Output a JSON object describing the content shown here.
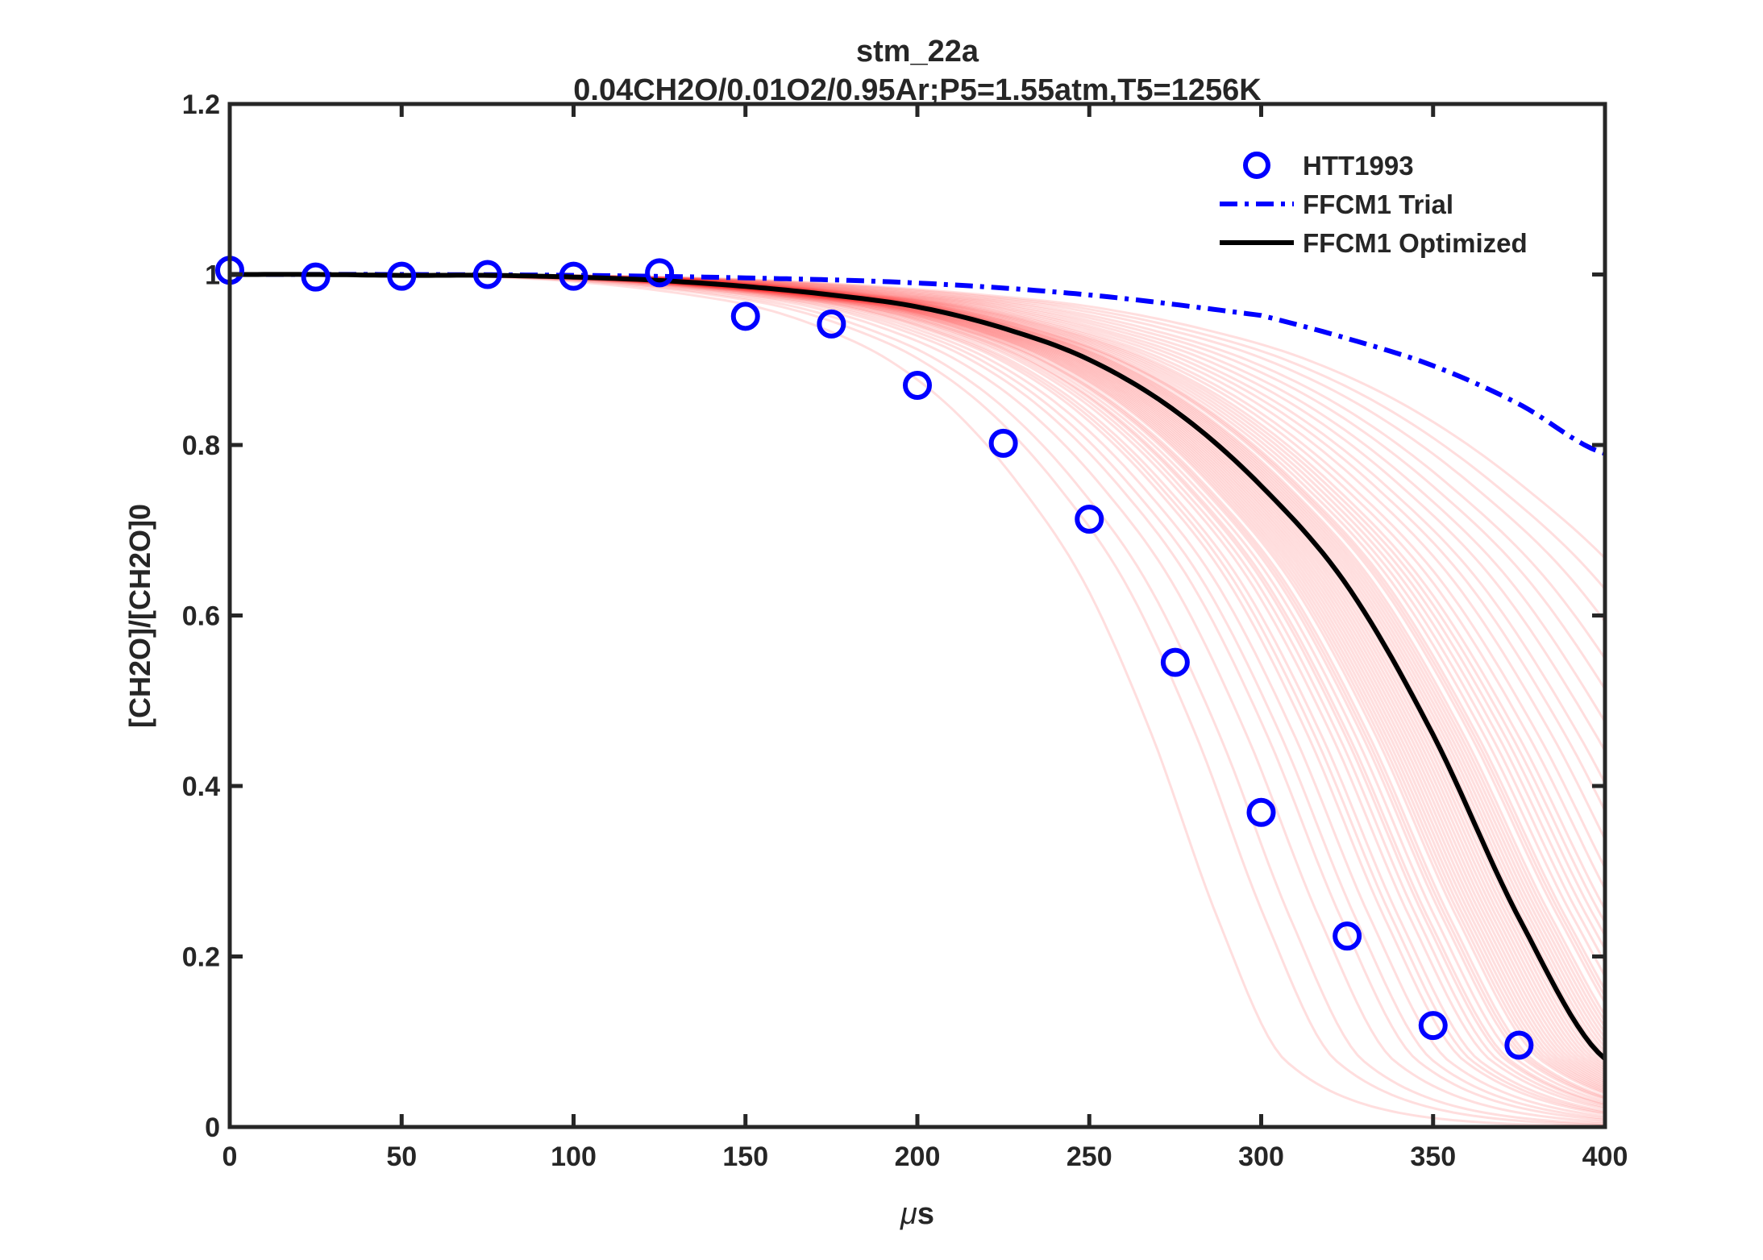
{
  "chart_data": {
    "type": "line",
    "title": "stm_22a",
    "subtitle": "0.04CH2O/0.01O2/0.95Ar;P5=1.55atm,T5=1256K",
    "xlabel_prefix": "μ",
    "xlabel_suffix": "s",
    "ylabel": "[CH2O]/[CH2O]0",
    "xlim": [
      0,
      400
    ],
    "ylim": [
      0,
      1.2
    ],
    "xticks": [
      "0",
      "50",
      "100",
      "150",
      "200",
      "250",
      "300",
      "350",
      "400"
    ],
    "yticks": [
      "0",
      "0.2",
      "0.4",
      "0.6",
      "0.8",
      "1",
      "1.2"
    ],
    "grid": false,
    "legend_position": "top-right",
    "series": [
      {
        "name": "HTT1993",
        "style": "markers-circle",
        "color": "#0000ff",
        "x": [
          0,
          25,
          50,
          75,
          100,
          125,
          150,
          175,
          200,
          225,
          250,
          275,
          300,
          325,
          350,
          375
        ],
        "y": [
          1.005,
          0.997,
          0.998,
          1.0,
          0.998,
          1.002,
          0.951,
          0.942,
          0.87,
          0.802,
          0.713,
          0.545,
          0.369,
          0.224,
          0.119,
          0.096
        ]
      },
      {
        "name": "FFCM1 Trial",
        "style": "dash-dot",
        "color": "#0000ff",
        "x": [
          0,
          50,
          100,
          150,
          200,
          250,
          300,
          325,
          350,
          375,
          400
        ],
        "y": [
          1.0,
          1.0,
          0.999,
          0.996,
          0.99,
          0.976,
          0.952,
          0.925,
          0.893,
          0.848,
          0.79
        ]
      },
      {
        "name": "FFCM1 Optimized",
        "style": "solid",
        "color": "#000000",
        "x": [
          0,
          25,
          50,
          75,
          100,
          125,
          150,
          175,
          200,
          225,
          250,
          275,
          300,
          325,
          350,
          375,
          400
        ],
        "y": [
          1.0,
          1.0,
          0.999,
          0.999,
          0.997,
          0.993,
          0.986,
          0.976,
          0.962,
          0.937,
          0.9,
          0.84,
          0.752,
          0.635,
          0.46,
          0.245,
          0.08
        ]
      }
    ],
    "ensemble": {
      "color": "#ff0000",
      "opacity": 0.13,
      "t50_us": [
        272,
        285,
        292,
        300,
        306,
        310,
        314,
        318,
        320,
        322,
        325,
        327,
        329,
        330,
        332,
        334,
        335,
        336,
        338,
        339,
        340,
        341,
        342,
        343,
        344,
        345,
        346,
        347,
        348,
        349,
        350,
        351,
        352,
        353,
        354,
        355,
        356,
        357,
        358,
        359,
        360,
        361,
        362,
        363,
        364,
        366,
        367,
        368,
        370,
        372,
        374,
        376,
        378,
        380,
        383,
        386,
        390,
        394,
        398,
        403,
        408,
        414,
        420,
        428,
        436,
        445
      ]
    }
  }
}
